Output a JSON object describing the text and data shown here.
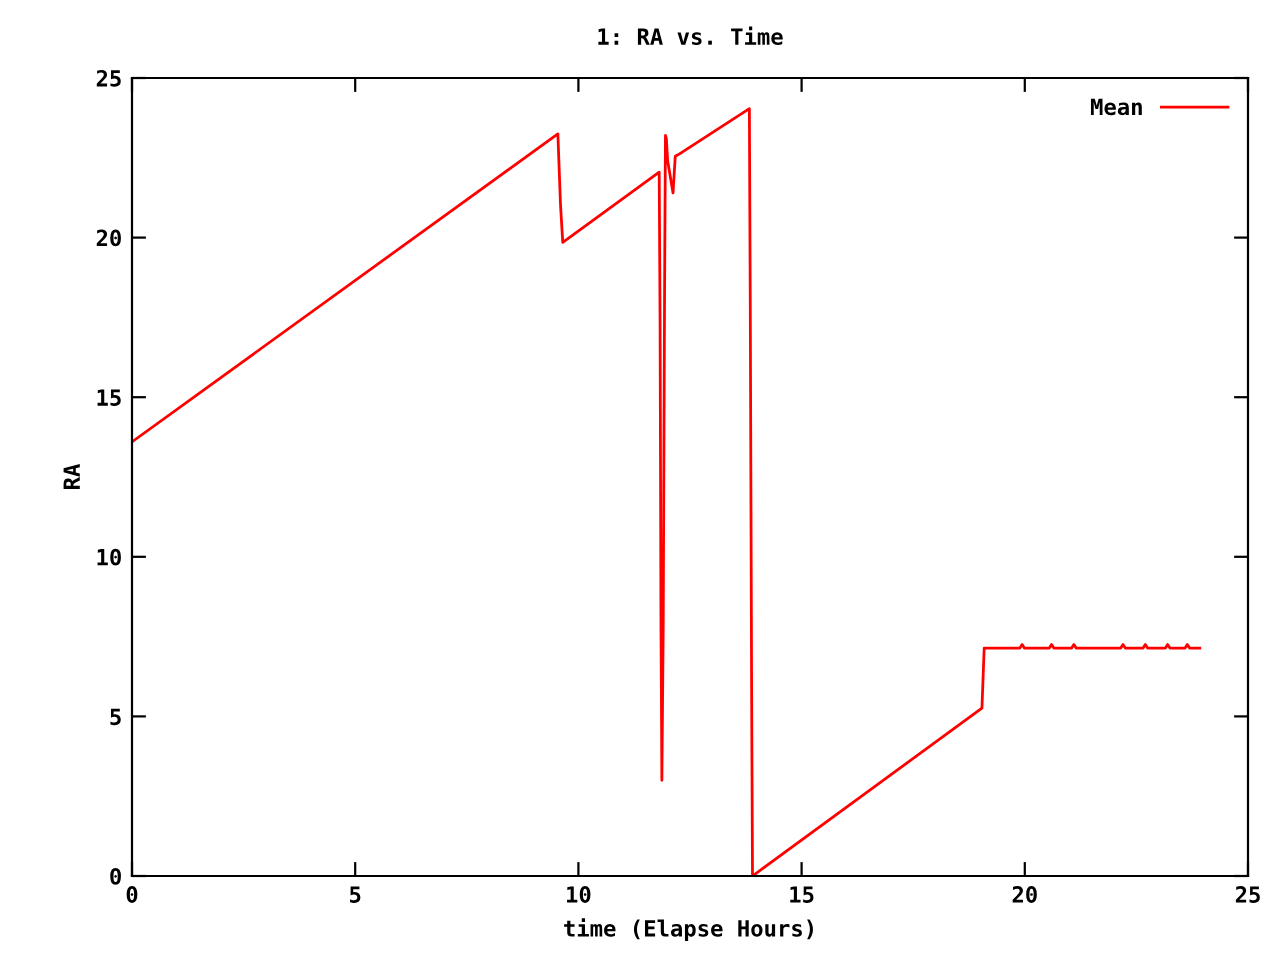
{
  "chart_data": {
    "type": "line",
    "title": "1: RA vs. Time",
    "xlabel": "time (Elapse Hours)",
    "ylabel": "RA",
    "xlim": [
      0,
      25
    ],
    "ylim": [
      0,
      25
    ],
    "xticks": [
      0,
      5,
      10,
      15,
      20,
      25
    ],
    "yticks": [
      0,
      5,
      10,
      15,
      20,
      25
    ],
    "grid": false,
    "legend": "top right",
    "series": [
      {
        "name": "Mean",
        "color": "#ff0000",
        "x": [
          0,
          9.54,
          9.6,
          9.65,
          11.81,
          11.83,
          11.85,
          11.87,
          11.9,
          11.93,
          11.95,
          11.97,
          12.0,
          12.12,
          12.17,
          12.24,
          13.83,
          13.85,
          13.88,
          13.9,
          19.04,
          19.06,
          19.09,
          19.89,
          19.94,
          19.99,
          20.55,
          20.6,
          20.65,
          21.05,
          21.1,
          21.15,
          22.15,
          22.2,
          22.25,
          22.65,
          22.7,
          22.75,
          23.15,
          23.2,
          23.25,
          23.59,
          23.64,
          23.69,
          23.92
        ],
        "values": [
          13.6,
          23.25,
          21.0,
          19.85,
          22.05,
          17.3,
          7.8,
          3.0,
          7.8,
          18.2,
          23.2,
          23.1,
          22.4,
          21.4,
          22.55,
          22.6,
          24.04,
          18.0,
          6.0,
          0.0,
          5.26,
          6.0,
          7.14,
          7.14,
          7.25,
          7.14,
          7.14,
          7.25,
          7.14,
          7.14,
          7.25,
          7.14,
          7.14,
          7.25,
          7.14,
          7.14,
          7.25,
          7.14,
          7.14,
          7.25,
          7.14,
          7.14,
          7.25,
          7.14,
          7.14
        ]
      }
    ]
  }
}
